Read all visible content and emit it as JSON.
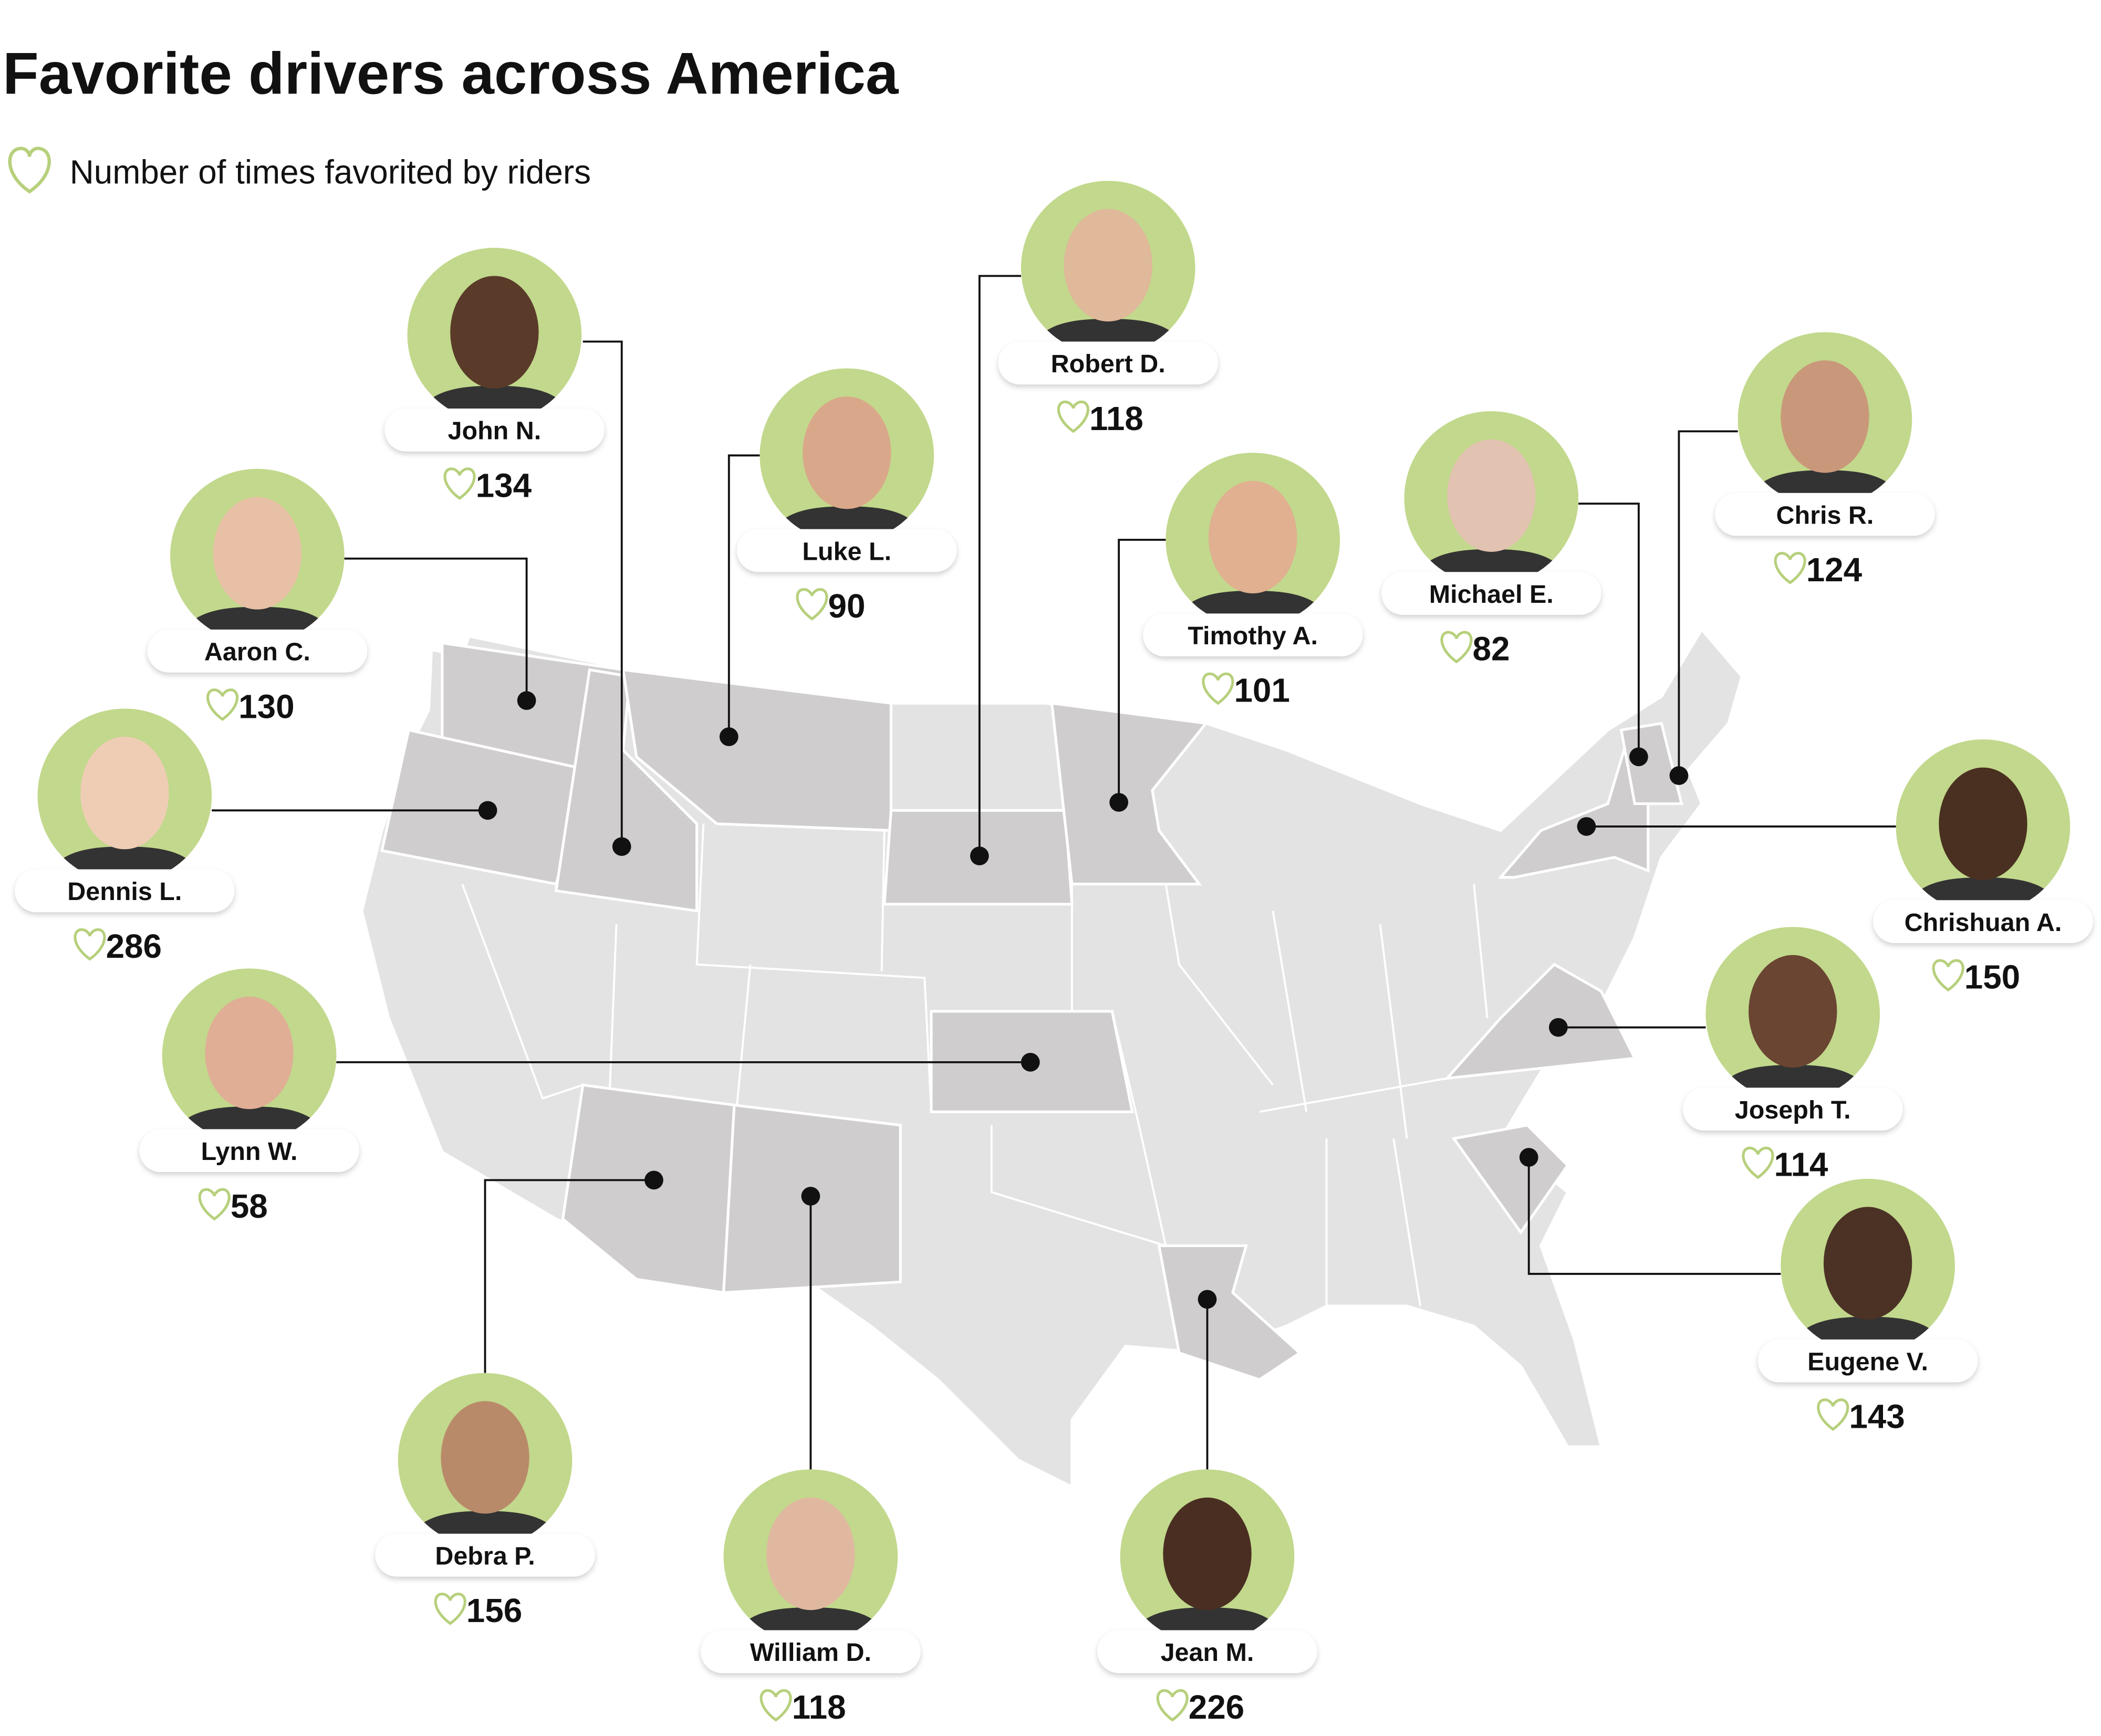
{
  "header": {
    "title": "Favorite drivers across America",
    "legend_label": "Number of times favorited by riders"
  },
  "drivers": [
    {
      "name": "John N.",
      "count": 134
    },
    {
      "name": "Robert D.",
      "count": 118
    },
    {
      "name": "Luke L.",
      "count": 90
    },
    {
      "name": "Aaron C.",
      "count": 130
    },
    {
      "name": "Chris R.",
      "count": 124
    },
    {
      "name": "Michael E.",
      "count": 82
    },
    {
      "name": "Timothy A.",
      "count": 101
    },
    {
      "name": "Dennis L.",
      "count": 286
    },
    {
      "name": "Chrishuan A.",
      "count": 150
    },
    {
      "name": "Lynn W.",
      "count": 58
    },
    {
      "name": "Joseph T.",
      "count": 114
    },
    {
      "name": "Eugene V.",
      "count": 143
    },
    {
      "name": "Debra P.",
      "count": 156
    },
    {
      "name": "William D.",
      "count": 118
    },
    {
      "name": "Jean M.",
      "count": 226
    }
  ]
}
